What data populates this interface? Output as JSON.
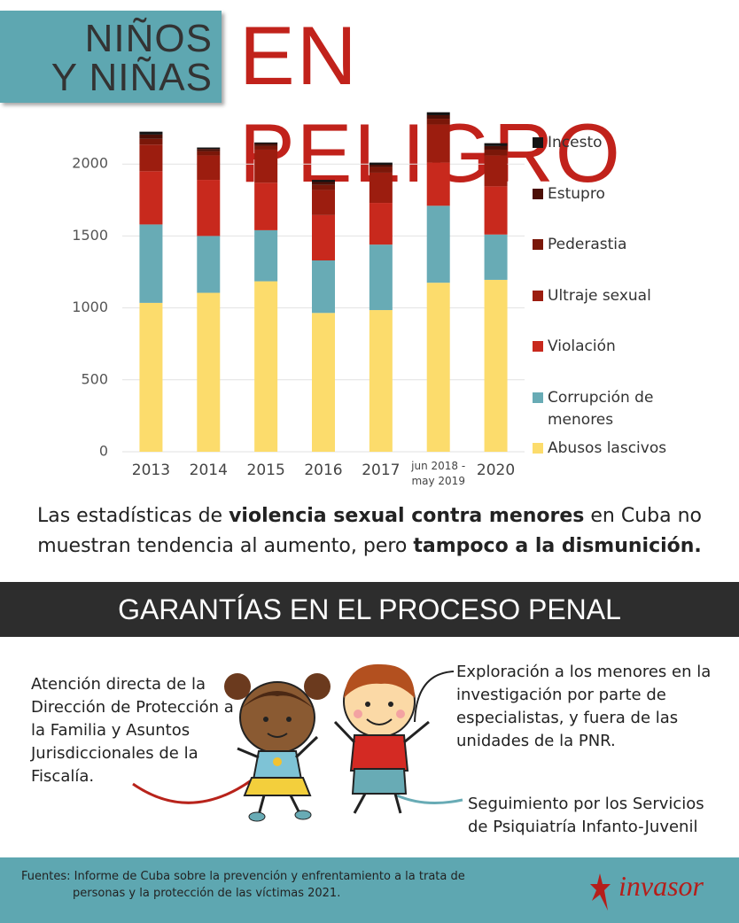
{
  "header": {
    "kicker_line1": "NIÑOS",
    "kicker_line2": "Y NIÑAS",
    "title": "EN PELIGRO"
  },
  "chart_data": {
    "type": "stacked-bar",
    "categories": [
      "2013",
      "2014",
      "2015",
      "2016",
      "2017",
      "jun 2018 - may 2019",
      "2020"
    ],
    "series": [
      {
        "name": "Abusos lascivos",
        "color": "#fcdc6c",
        "values": [
          1035,
          1105,
          1185,
          965,
          985,
          1175,
          1195
        ]
      },
      {
        "name": "Corrupción de menores",
        "color": "#68abb5",
        "values": [
          545,
          395,
          355,
          365,
          455,
          535,
          315
        ]
      },
      {
        "name": "Violación",
        "color": "#c8291d",
        "values": [
          370,
          390,
          330,
          315,
          290,
          300,
          335
        ]
      },
      {
        "name": "Ultraje sexual",
        "color": "#9c1d0f",
        "values": [
          185,
          170,
          230,
          175,
          210,
          265,
          215
        ]
      },
      {
        "name": "Pederastia",
        "color": "#7a1709",
        "values": [
          40,
          30,
          25,
          35,
          40,
          40,
          40
        ]
      },
      {
        "name": "Estupro",
        "color": "#4c0f06",
        "values": [
          30,
          15,
          15,
          20,
          15,
          25,
          25
        ]
      },
      {
        "name": "Incesto",
        "color": "#141414",
        "values": [
          20,
          10,
          10,
          15,
          15,
          20,
          20
        ]
      }
    ],
    "ylim": [
      0,
      2500
    ],
    "yticks": [
      0,
      500,
      1000,
      1500,
      2000
    ],
    "grid": true
  },
  "summary": [
    "Las estadísticas de ",
    "violencia sexual contra menores",
    " en Cuba no muestran tendencia al aumento, pero ",
    "tampoco a la dismunición."
  ],
  "section_title": "GARANTÍAS EN EL PROCESO PENAL",
  "callouts": [
    "Atención directa de la Dirección de Protección a la Familia y Asuntos Jurisdiccionales de la Fiscalía.",
    "Exploración a los menores en la investigación por parte de especialistas, y fuera de las unidades de la PNR.",
    "Seguimiento por los Servicios de Psiquiatría Infanto-Juvenil"
  ],
  "footer": {
    "sources": "Fuentes: Informe de Cuba sobre la prevención y enfrentamiento a la trata de personas y la protección de las víctimas 2021.",
    "logo": "invasor"
  }
}
